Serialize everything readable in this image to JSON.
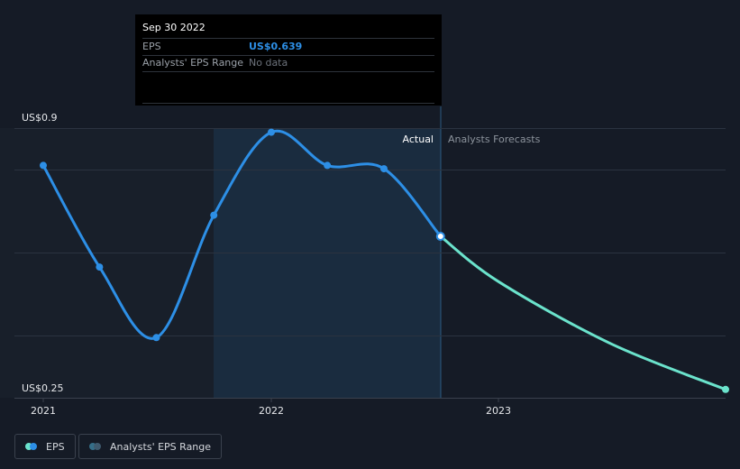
{
  "tooltip": {
    "date": "Sep 30 2022",
    "eps_label": "EPS",
    "eps_value": "US$0.639",
    "range_label": "Analysts' EPS Range",
    "range_value": "No data"
  },
  "labels": {
    "actual": "Actual",
    "forecast": "Analysts Forecasts"
  },
  "legend": {
    "eps_label": "EPS",
    "range_label": "Analysts' EPS Range"
  },
  "colors": {
    "eps": "#2d8fe6",
    "forecast": "#6be3cc",
    "range": "#356e88",
    "grid": "#2b3340",
    "background": "#151b26",
    "highlight": "#1a2c3f"
  },
  "chart_data": {
    "type": "line",
    "y_unit": "US$",
    "ylim": [
      0.25,
      0.9
    ],
    "y_tick_labels": [
      "US$0.9",
      "US$0.25"
    ],
    "x_tick_labels": [
      "2021",
      "2022",
      "2023"
    ],
    "actual_label": "Actual",
    "forecast_label": "Analysts Forecasts",
    "series": [
      {
        "name": "EPS",
        "points": [
          {
            "x": "2021-01-01",
            "y": 0.81
          },
          {
            "x": "2021-04-01",
            "y": 0.565
          },
          {
            "x": "2021-07-01",
            "y": 0.395
          },
          {
            "x": "2021-10-01",
            "y": 0.69
          },
          {
            "x": "2022-01-01",
            "y": 0.89
          },
          {
            "x": "2022-04-01",
            "y": 0.81
          },
          {
            "x": "2022-07-01",
            "y": 0.802
          },
          {
            "x": "2022-09-30",
            "y": 0.639
          }
        ]
      },
      {
        "name": "Analysts Forecasts",
        "points": [
          {
            "x": "2022-09-30",
            "y": 0.639
          },
          {
            "x": "2023-01-01",
            "y": 0.53
          },
          {
            "x": "2023-07-01",
            "y": 0.38
          },
          {
            "x": "2024-01-01",
            "y": 0.27
          }
        ]
      }
    ]
  }
}
